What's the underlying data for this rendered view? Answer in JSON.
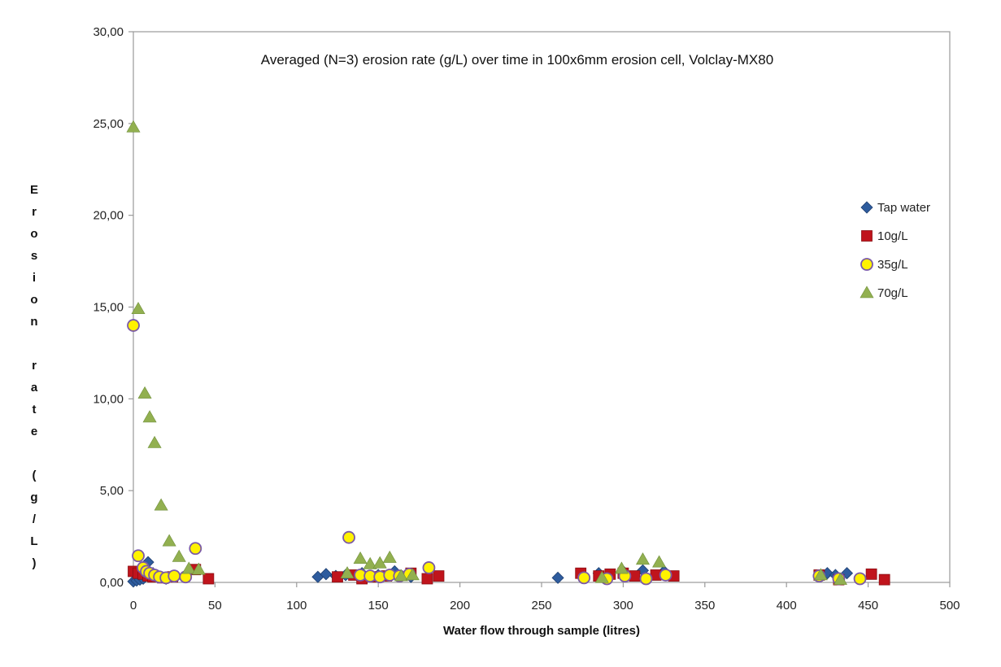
{
  "chart_data": {
    "type": "scatter",
    "title": "Averaged (N=3) erosion rate (g/L) over time in 100x6mm erosion cell, Volclay-MX80",
    "xlabel": "Water flow through sample (litres)",
    "ylabel": "Erosion rate (g/L)",
    "xlim": [
      0,
      500
    ],
    "ylim": [
      0,
      30
    ],
    "x_ticks": [
      0,
      50,
      100,
      150,
      200,
      250,
      300,
      350,
      400,
      450,
      500
    ],
    "x_tick_labels": [
      "0",
      "50",
      "100",
      "150",
      "200",
      "250",
      "300",
      "350",
      "400",
      "450",
      "500"
    ],
    "y_ticks": [
      0,
      5,
      10,
      15,
      20,
      25,
      30
    ],
    "y_tick_labels": [
      "0,00",
      "5,00",
      "10,00",
      "15,00",
      "20,00",
      "25,00",
      "30,00"
    ],
    "grid": false,
    "legend_position": "right",
    "series": [
      {
        "name": "Tap water",
        "marker": "diamond",
        "color": "#2E5C9E",
        "points": [
          [
            0,
            0.05
          ],
          [
            2,
            0.1
          ],
          [
            4,
            0.15
          ],
          [
            6,
            0.2
          ],
          [
            9,
            1.1
          ],
          [
            12,
            0.5
          ],
          [
            16,
            0.3
          ],
          [
            20,
            0.2
          ],
          [
            113,
            0.3
          ],
          [
            118,
            0.45
          ],
          [
            124,
            0.35
          ],
          [
            130,
            0.4
          ],
          [
            140,
            0.5
          ],
          [
            150,
            0.4
          ],
          [
            160,
            0.6
          ],
          [
            170,
            0.3
          ],
          [
            260,
            0.25
          ],
          [
            275,
            0.4
          ],
          [
            285,
            0.5
          ],
          [
            300,
            0.6
          ],
          [
            312,
            0.65
          ],
          [
            325,
            0.6
          ],
          [
            420,
            0.35
          ],
          [
            425,
            0.5
          ],
          [
            430,
            0.4
          ],
          [
            437,
            0.5
          ]
        ]
      },
      {
        "name": "10g/L",
        "marker": "square",
        "color": "#C0141C",
        "points": [
          [
            0,
            0.6
          ],
          [
            3,
            0.5
          ],
          [
            6,
            0.45
          ],
          [
            9,
            0.35
          ],
          [
            12,
            0.3
          ],
          [
            18,
            0.25
          ],
          [
            24,
            0.3
          ],
          [
            38,
            0.7
          ],
          [
            46,
            0.2
          ],
          [
            125,
            0.3
          ],
          [
            135,
            0.4
          ],
          [
            140,
            0.2
          ],
          [
            148,
            0.3
          ],
          [
            155,
            0.35
          ],
          [
            170,
            0.5
          ],
          [
            180,
            0.2
          ],
          [
            187,
            0.35
          ],
          [
            274,
            0.5
          ],
          [
            285,
            0.35
          ],
          [
            292,
            0.45
          ],
          [
            300,
            0.5
          ],
          [
            307,
            0.35
          ],
          [
            320,
            0.4
          ],
          [
            331,
            0.35
          ],
          [
            420,
            0.4
          ],
          [
            432,
            0.15
          ],
          [
            452,
            0.45
          ],
          [
            460,
            0.15
          ]
        ]
      },
      {
        "name": "35g/L",
        "marker": "circle",
        "color": "#FFF200",
        "stroke": "#7B5AA6",
        "points": [
          [
            0,
            14.0
          ],
          [
            3,
            1.45
          ],
          [
            6,
            0.8
          ],
          [
            8,
            0.6
          ],
          [
            10,
            0.5
          ],
          [
            13,
            0.4
          ],
          [
            16,
            0.3
          ],
          [
            20,
            0.25
          ],
          [
            25,
            0.35
          ],
          [
            32,
            0.3
          ],
          [
            38,
            1.85
          ],
          [
            132,
            2.45
          ],
          [
            139,
            0.4
          ],
          [
            145,
            0.35
          ],
          [
            151,
            0.3
          ],
          [
            157,
            0.4
          ],
          [
            163,
            0.35
          ],
          [
            169,
            0.45
          ],
          [
            181,
            0.8
          ],
          [
            276,
            0.25
          ],
          [
            290,
            0.2
          ],
          [
            301,
            0.35
          ],
          [
            314,
            0.2
          ],
          [
            326,
            0.4
          ],
          [
            420,
            0.35
          ],
          [
            432,
            0.2
          ],
          [
            445,
            0.2
          ]
        ]
      },
      {
        "name": "70g/L",
        "marker": "triangle",
        "color": "#92B050",
        "points": [
          [
            0,
            24.8
          ],
          [
            3,
            14.9
          ],
          [
            7,
            10.3
          ],
          [
            10,
            9.0
          ],
          [
            13,
            7.6
          ],
          [
            17,
            4.2
          ],
          [
            22,
            2.25
          ],
          [
            28,
            1.4
          ],
          [
            34,
            0.75
          ],
          [
            40,
            0.7
          ],
          [
            131,
            0.5
          ],
          [
            139,
            1.3
          ],
          [
            145,
            1.0
          ],
          [
            151,
            1.05
          ],
          [
            157,
            1.35
          ],
          [
            164,
            0.35
          ],
          [
            171,
            0.4
          ],
          [
            287,
            0.25
          ],
          [
            299,
            0.75
          ],
          [
            312,
            1.25
          ],
          [
            322,
            1.1
          ],
          [
            421,
            0.4
          ],
          [
            433,
            0.15
          ]
        ]
      }
    ]
  }
}
